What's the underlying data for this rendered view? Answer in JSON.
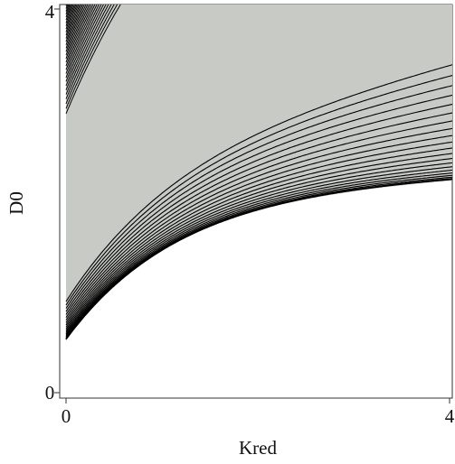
{
  "chart_data": {
    "type": "contour",
    "title": "",
    "xlabel": "Kred",
    "ylabel": "D0",
    "xlim": [
      0,
      4
    ],
    "ylim": [
      0,
      4
    ],
    "x_ticks": [
      "0",
      "4"
    ],
    "y_ticks": [
      "0",
      "4"
    ],
    "colors": {
      "valid_region_fill": "#c8cac6",
      "contour_line": "#000000",
      "undefined_region": "#ffffff"
    },
    "lower_boundary": {
      "description_points": [
        [
          0.0,
          0.55
        ],
        [
          0.4,
          1.0
        ],
        [
          1.0,
          1.35
        ],
        [
          2.0,
          1.62
        ],
        [
          3.0,
          1.78
        ],
        [
          4.0,
          1.85
        ]
      ]
    },
    "contour_levels": 36,
    "grid": false
  }
}
